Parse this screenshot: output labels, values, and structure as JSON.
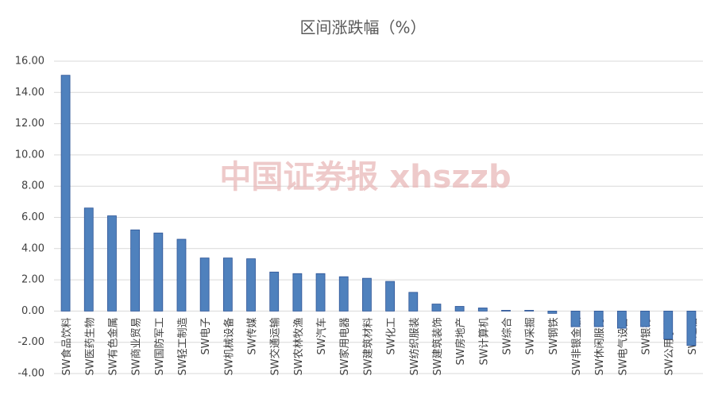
{
  "chart_data": {
    "type": "bar",
    "title": "区间涨跌幅（%）",
    "watermark": "中国证券报 xhszzb",
    "categories": [
      "SW食品饮料",
      "SW医药生物",
      "SW有色金属",
      "SW商业贸易",
      "SW国防军工",
      "SW轻工制造",
      "SW电子",
      "SW机械设备",
      "SW传媒",
      "SW交通运输",
      "SW农林牧渔",
      "SW汽车",
      "SW家用电器",
      "SW建筑材料",
      "SW化工",
      "SW纺织服装",
      "SW建筑装饰",
      "SW房地产",
      "SW计算机",
      "SW综合",
      "SW采掘",
      "SW钢铁",
      "SW非银金融",
      "SW休闲服务",
      "SW电气设备",
      "SW银行",
      "SW公用事业",
      "SW通信"
    ],
    "values": [
      15.1,
      6.6,
      6.1,
      5.2,
      5.0,
      4.6,
      3.4,
      3.4,
      3.35,
      2.5,
      2.4,
      2.4,
      2.2,
      2.1,
      1.9,
      1.2,
      0.45,
      0.3,
      0.2,
      0.05,
      0.05,
      -0.15,
      -1.0,
      -1.0,
      -1.1,
      -1.0,
      -1.8,
      -2.2
    ],
    "color": "#4f81bd",
    "ylim": [
      -4,
      16
    ],
    "yticks": [
      {
        "value": -4,
        "label": "-4.00"
      },
      {
        "value": -2,
        "label": "-2.00"
      },
      {
        "value": 0,
        "label": "0.00"
      },
      {
        "value": 2,
        "label": "2.00"
      },
      {
        "value": 4,
        "label": "4.00"
      },
      {
        "value": 6,
        "label": "6.00"
      },
      {
        "value": 8,
        "label": "8.00"
      },
      {
        "value": 10,
        "label": "10.00"
      },
      {
        "value": 12,
        "label": "12.00"
      },
      {
        "value": 14,
        "label": "14.00"
      },
      {
        "value": 16,
        "label": "16.00"
      }
    ],
    "grid": true
  }
}
